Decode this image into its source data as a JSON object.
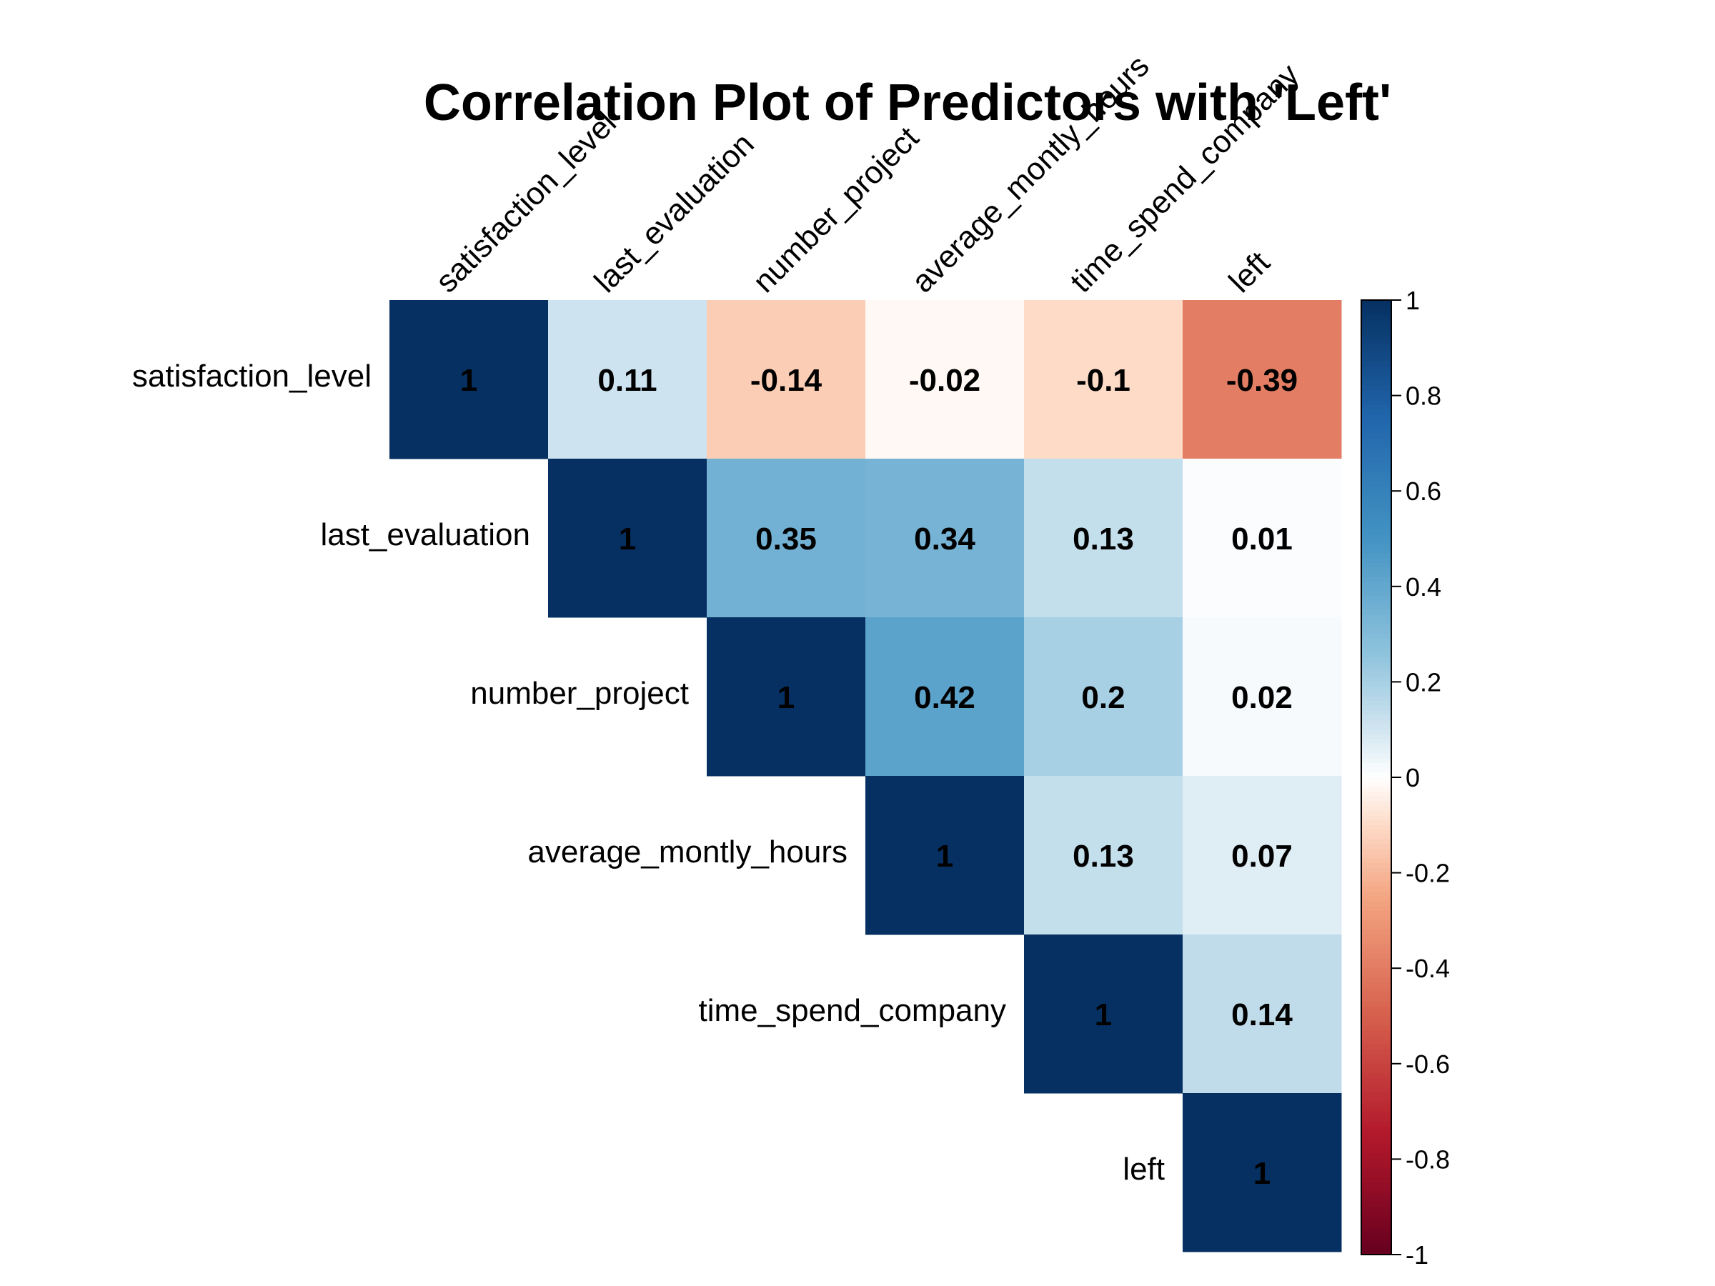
{
  "chart_data": {
    "type": "heatmap",
    "subtype": "correlation-matrix-upper",
    "title": "Correlation Plot of Predictors with 'Left'",
    "variables": [
      "satisfaction_level",
      "last_evaluation",
      "number_project",
      "average_montly_hours",
      "time_spend_company",
      "left"
    ],
    "matrix": [
      [
        1,
        0.11,
        -0.14,
        -0.02,
        -0.1,
        -0.39
      ],
      [
        null,
        1,
        0.35,
        0.34,
        0.13,
        0.01
      ],
      [
        null,
        null,
        1,
        0.42,
        0.2,
        0.02
      ],
      [
        null,
        null,
        null,
        1,
        0.13,
        0.07
      ],
      [
        null,
        null,
        null,
        null,
        1,
        0.14
      ],
      [
        null,
        null,
        null,
        null,
        null,
        1
      ]
    ],
    "cell_labels": [
      [
        "1",
        "0.11",
        "-0.14",
        "-0.02",
        "-0.1",
        "-0.39"
      ],
      [
        "",
        "1",
        "0.35",
        "0.34",
        "0.13",
        "0.01"
      ],
      [
        "",
        "",
        "1",
        "0.42",
        "0.2",
        "0.02"
      ],
      [
        "",
        "",
        "",
        "1",
        "0.13",
        "0.07"
      ],
      [
        "",
        "",
        "",
        "",
        "1",
        "0.14"
      ],
      [
        "",
        "",
        "",
        "",
        "",
        "1"
      ]
    ],
    "value_range": [
      -1,
      1
    ],
    "legend": {
      "position": "right",
      "ticks": [
        1,
        0.8,
        0.6,
        0.4,
        0.2,
        0,
        -0.2,
        -0.4,
        -0.6,
        -0.8,
        -1
      ],
      "tick_labels": [
        "1",
        "0.8",
        "0.6",
        "0.4",
        "0.2",
        "0",
        "-0.2",
        "-0.4",
        "-0.6",
        "-0.8",
        "-1"
      ]
    },
    "color_scale": {
      "stops": [
        {
          "value": -1,
          "color": "#67001f"
        },
        {
          "value": -0.75,
          "color": "#b2182b"
        },
        {
          "value": -0.5,
          "color": "#d6604d"
        },
        {
          "value": -0.25,
          "color": "#f4a582"
        },
        {
          "value": -0.1,
          "color": "#fddbc7"
        },
        {
          "value": 0,
          "color": "#ffffff"
        },
        {
          "value": 0.1,
          "color": "#d1e5f0"
        },
        {
          "value": 0.25,
          "color": "#92c5de"
        },
        {
          "value": 0.5,
          "color": "#4393c3"
        },
        {
          "value": 0.75,
          "color": "#2166ac"
        },
        {
          "value": 1,
          "color": "#053061"
        }
      ]
    },
    "grid": false
  }
}
